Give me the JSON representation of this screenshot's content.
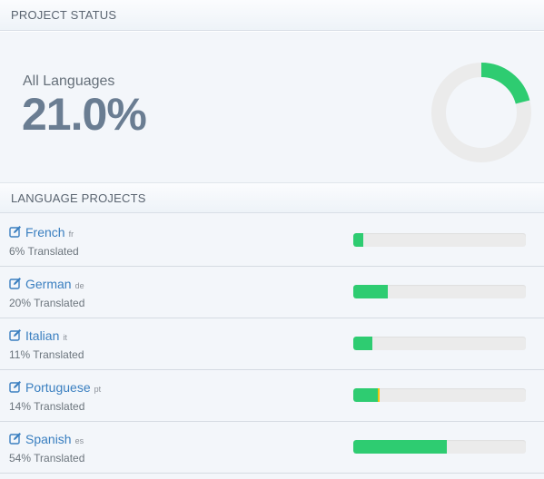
{
  "colors": {
    "accent": "#2ecc71",
    "link": "#3a7fc0",
    "track": "#ebebeb",
    "value_text": "#6a7d92",
    "review_tip": "#f1c40f"
  },
  "project_status": {
    "header": "PROJECT STATUS",
    "label": "All Languages",
    "value": "21.0%",
    "progress_percent": 21.0
  },
  "language_projects": {
    "header": "LANGUAGE PROJECTS",
    "items": [
      {
        "name": "French",
        "code": "fr",
        "translated_text": "6% Translated",
        "percent": 6,
        "icon": "edit-icon"
      },
      {
        "name": "German",
        "code": "de",
        "translated_text": "20% Translated",
        "percent": 20,
        "icon": "edit-icon"
      },
      {
        "name": "Italian",
        "code": "it",
        "translated_text": "11% Translated",
        "percent": 11,
        "icon": "edit-icon"
      },
      {
        "name": "Portuguese",
        "code": "pt",
        "translated_text": "14% Translated",
        "percent": 14,
        "icon": "edit-icon",
        "has_review_tip": true
      },
      {
        "name": "Spanish",
        "code": "es",
        "translated_text": "54% Translated",
        "percent": 54,
        "icon": "edit-icon"
      }
    ]
  }
}
